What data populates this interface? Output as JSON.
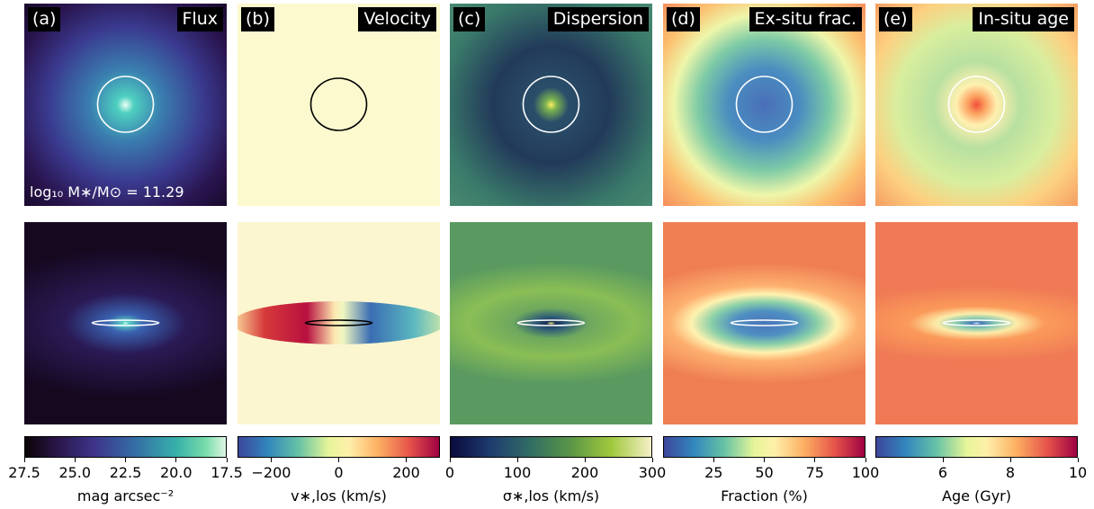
{
  "chart_data": {
    "type": "heatmap",
    "galaxy_mass_label": "log₁₀ M∗/M⊙ = 11.29",
    "panels": [
      {
        "tag": "(a)",
        "title": "Flux",
        "colorbar": {
          "label": "mag arcsec⁻²",
          "ticks": [
            "27.5",
            "25.0",
            "22.5",
            "20.0",
            "17.5"
          ],
          "range": [
            27.5,
            17.5
          ],
          "colormap": "mako"
        }
      },
      {
        "tag": "(b)",
        "title": "Velocity",
        "colorbar": {
          "label": "v∗,los (km/s)",
          "ticks": [
            "−200",
            "0",
            "200"
          ],
          "range": [
            -300,
            300
          ],
          "colormap": "spectral_r"
        }
      },
      {
        "tag": "(c)",
        "title": "Dispersion",
        "colorbar": {
          "label": "σ∗,los (km/s)",
          "ticks": [
            "0",
            "100",
            "200",
            "300"
          ],
          "range": [
            0,
            300
          ],
          "colormap": "gist_earth"
        }
      },
      {
        "tag": "(d)",
        "title": "Ex-situ frac.",
        "colorbar": {
          "label": "Fraction (%)",
          "ticks": [
            "25",
            "50",
            "75",
            "100"
          ],
          "range": [
            0,
            100
          ],
          "colormap": "spectral_r"
        }
      },
      {
        "tag": "(e)",
        "title": "In-situ age",
        "colorbar": {
          "label": "Age (Gyr)",
          "ticks": [
            "6",
            "8",
            "10"
          ],
          "range": [
            4,
            10
          ],
          "colormap": "spectral_r"
        }
      }
    ],
    "rows": [
      "face-on",
      "edge-on"
    ]
  }
}
